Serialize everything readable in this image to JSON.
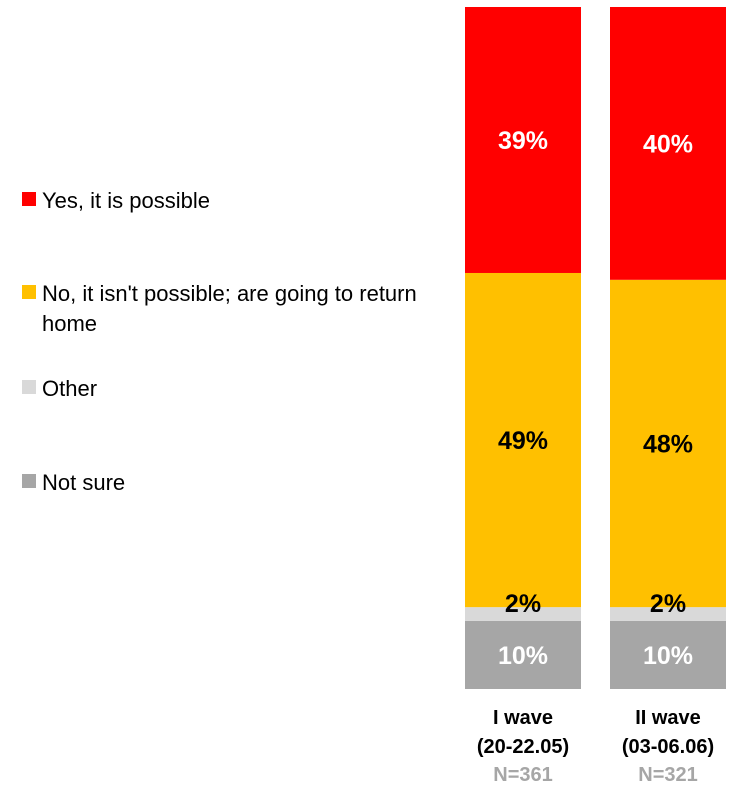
{
  "chart_data": {
    "type": "bar",
    "stacked": true,
    "orientation": "vertical",
    "categories": [
      "I wave\n(20-22.05)",
      "II wave\n(03-06.06)"
    ],
    "category_lines": [
      [
        "I wave",
        "(20-22.05)"
      ],
      [
        "II wave",
        "(03-06.06)"
      ]
    ],
    "sample_sizes": [
      "N=361",
      "N=321"
    ],
    "series": [
      {
        "name": "Not sure",
        "values": [
          10,
          10
        ],
        "labels": [
          "10%",
          "10%"
        ],
        "color": "#a6a6a6",
        "label_color": "#ffffff"
      },
      {
        "name": "Other",
        "values": [
          2,
          2
        ],
        "labels": [
          "2%",
          "2%"
        ],
        "color": "#d9d9d9",
        "label_color": "#000000"
      },
      {
        "name": "No, it isn't possible; are going to return home",
        "values": [
          49,
          48
        ],
        "labels": [
          "49%",
          "48%"
        ],
        "color": "#ffc000",
        "label_color": "#000000"
      },
      {
        "name": "Yes, it is possible",
        "values": [
          39,
          40
        ],
        "labels": [
          "39%",
          "40%"
        ],
        "color": "#ff0000",
        "label_color": "#ffffff"
      }
    ],
    "ylim": [
      0,
      100
    ],
    "legend_position": "left",
    "legend_order": [
      "Yes, it is possible",
      "No, it isn't possible; are going to return home",
      "Other",
      "Not sure"
    ],
    "grid": false
  }
}
